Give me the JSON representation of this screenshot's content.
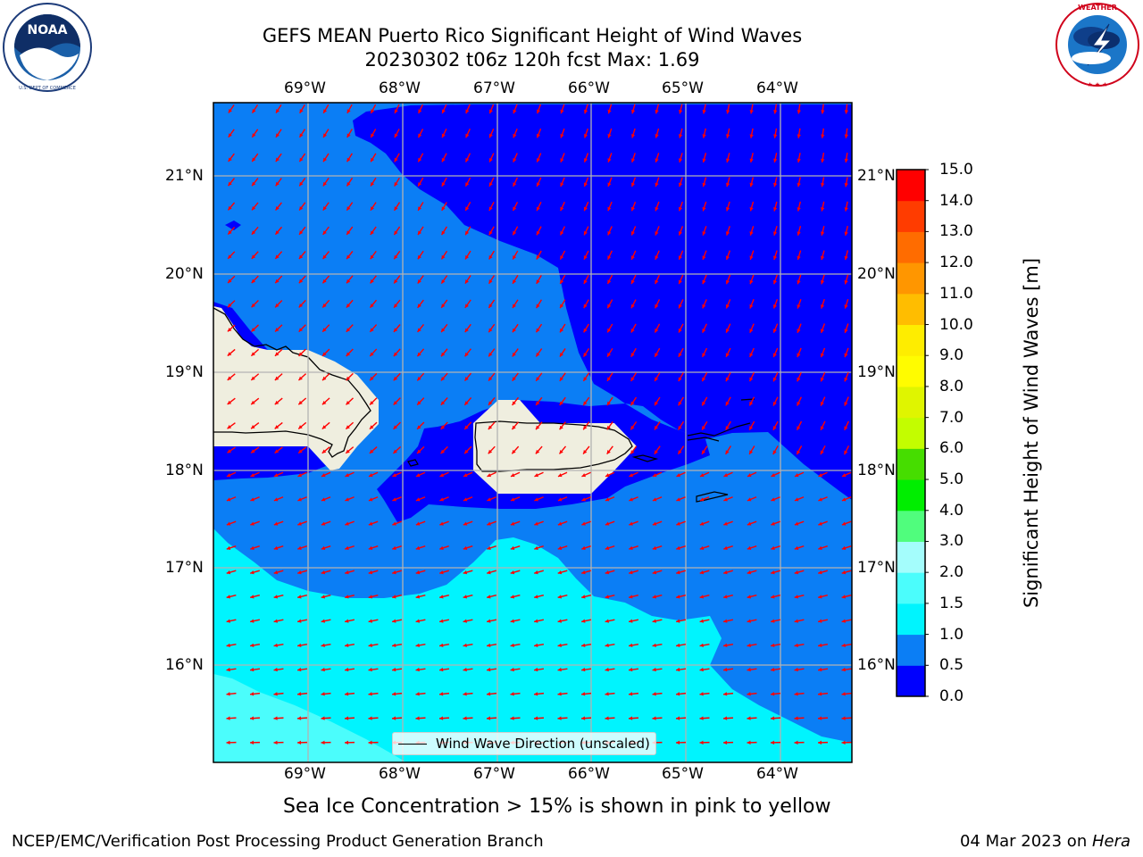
{
  "title": {
    "line1": "GEFS MEAN Puerto Rico Significant Height of Wind Waves",
    "line2": "20230302 t06z 120h fcst   Max: 1.69"
  },
  "logos": {
    "left": {
      "name": "NOAA",
      "ring_text": "NATIONAL OCEANIC AND ATMOSPHERIC ADMINISTRATION · U.S. DEPARTMENT OF COMMERCE"
    },
    "right": {
      "name": "NATIONAL WEATHER SERVICE"
    }
  },
  "map": {
    "lon_labels": [
      "69°W",
      "68°W",
      "67°W",
      "66°W",
      "65°W",
      "64°W"
    ],
    "lat_labels": [
      "21°N",
      "20°N",
      "19°N",
      "18°N",
      "17°N",
      "16°N"
    ],
    "lon_range": [
      -70.0,
      -63.25
    ],
    "lat_range": [
      15.0,
      21.75
    ],
    "gridlines": true,
    "wind_direction_general": "from east-northeast, flowing toward west-southwest (north of 17.5°N) and toward west (south)",
    "legend_label": "Wind Wave Direction (unscaled)",
    "legend_placement": "bottom-center",
    "land_color": "#efeedf"
  },
  "colorbar": {
    "label": "Significant Height of Wind Waves [m]",
    "ticks": [
      "15.0",
      "14.0",
      "13.0",
      "12.0",
      "11.0",
      "10.0",
      "9.0",
      "8.0",
      "7.0",
      "6.0",
      "5.0",
      "4.0",
      "3.0",
      "2.0",
      "1.5",
      "1.0",
      "0.5",
      "0.0"
    ],
    "levels": [
      0.0,
      0.5,
      1.0,
      1.5,
      2.0,
      3.0,
      4.0,
      5.0,
      6.0,
      7.0,
      8.0,
      9.0,
      10.0,
      11.0,
      12.0,
      13.0,
      14.0,
      15.0
    ],
    "colors": [
      "#0000fe",
      "#0b7ef5",
      "#00f4fe",
      "#4bfdfc",
      "#a4fdfc",
      "#50fd7d",
      "#00ee00",
      "#46dd00",
      "#c3fd00",
      "#dff500",
      "#fffc00",
      "#feed00",
      "#ffbd00",
      "#ff9600",
      "#ff6c00",
      "#ff3c00",
      "#ff0000"
    ]
  },
  "caption": "Sea Ice Concentration > 15% is shown in pink to yellow",
  "footer": {
    "left": "NCEP/EMC/Verification Post Processing Product Generation Branch",
    "right_prefix": "04 Mar 2023 on ",
    "right_host": "Hera"
  }
}
